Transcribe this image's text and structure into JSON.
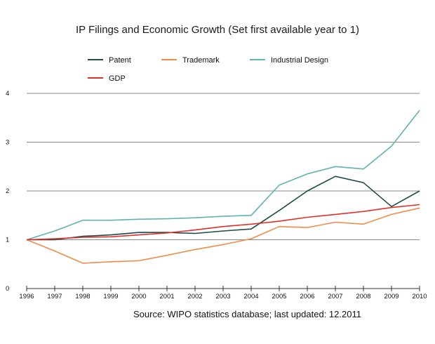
{
  "chart_data": {
    "type": "line",
    "title": "IP Filings and Economic Growth (Set first available year to 1)",
    "source": "Source: WIPO statistics database; last updated: 12.2011",
    "x": [
      "1996",
      "1997",
      "1998",
      "1999",
      "2000",
      "2001",
      "2002",
      "2003",
      "2004",
      "2005",
      "2006",
      "2007",
      "2008",
      "2009",
      "2010"
    ],
    "ylim": [
      0,
      4
    ],
    "yticks": [
      "0",
      "1",
      "2",
      "3",
      "4"
    ],
    "grid": true,
    "legend_position": "top",
    "series": [
      {
        "name": "Patent",
        "color": "#1f4a4a",
        "values": [
          1.0,
          1.0,
          1.07,
          1.1,
          1.15,
          1.15,
          1.13,
          1.18,
          1.22,
          1.6,
          2.0,
          2.3,
          2.17,
          1.68,
          2.0
        ]
      },
      {
        "name": "Trademark",
        "color": "#f08c4a",
        "values": [
          1.0,
          0.77,
          0.52,
          0.55,
          0.57,
          0.68,
          0.8,
          0.9,
          1.02,
          1.27,
          1.25,
          1.36,
          1.32,
          1.52,
          1.65
        ]
      },
      {
        "name": "Industrial Design",
        "color": "#5fb3b3",
        "values": [
          1.0,
          1.18,
          1.4,
          1.4,
          1.42,
          1.43,
          1.45,
          1.48,
          1.5,
          2.12,
          2.35,
          2.5,
          2.45,
          2.92,
          3.65
        ]
      },
      {
        "name": "GDP",
        "color": "#e0302a",
        "values": [
          1.0,
          1.02,
          1.05,
          1.06,
          1.1,
          1.14,
          1.2,
          1.27,
          1.32,
          1.38,
          1.46,
          1.52,
          1.58,
          1.66,
          1.72
        ]
      }
    ]
  }
}
